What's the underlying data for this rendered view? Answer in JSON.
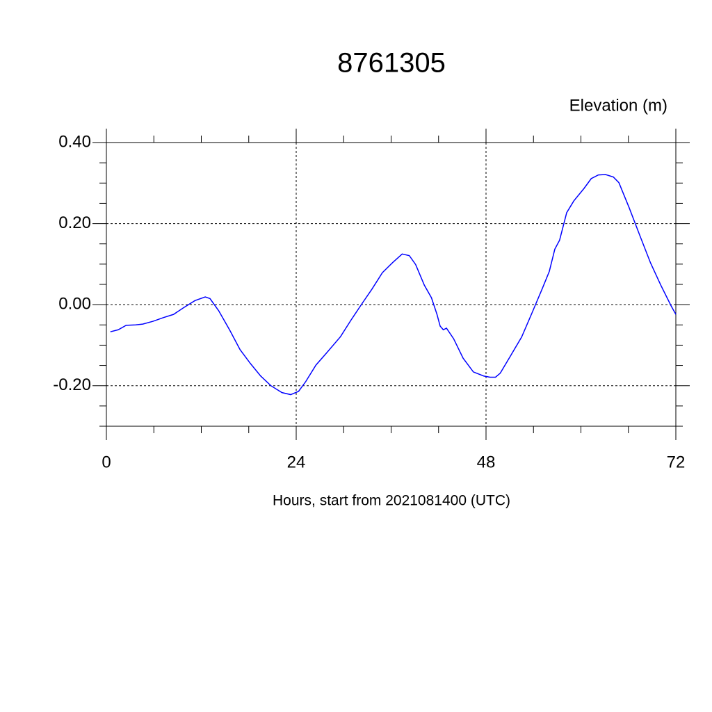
{
  "chart_data": {
    "type": "line",
    "title": "8761305",
    "ylabel": "Elevation (m)",
    "xlabel": "Hours, start from 2021081400 (UTC)",
    "x": [
      0.5,
      1.5,
      2.5,
      3.7,
      4.6,
      5.9,
      7.2,
      8.5,
      9.8,
      11.2,
      12.5,
      13.1,
      14.2,
      15.6,
      16.9,
      18.2,
      19.5,
      20.8,
      22.2,
      23.3,
      24.3,
      25.2,
      26.5,
      27.8,
      29.6,
      30.9,
      32.3,
      33.6,
      34.9,
      36.2,
      37.4,
      38.3,
      39.1,
      40.2,
      41.1,
      41.8,
      42.2,
      42.6,
      43.0,
      43.9,
      45.1,
      46.4,
      47.7,
      48.5,
      49.2,
      49.8,
      51.2,
      52.5,
      53.8,
      55.1,
      56.0,
      56.7,
      57.3,
      58.2,
      59.1,
      60.4,
      61.3,
      62.2,
      63.1,
      64.1,
      64.8,
      66.1,
      67.5,
      68.8,
      70.1,
      71.4,
      72
    ],
    "series": [
      {
        "color": "#0000ff",
        "values": [
          -0.067,
          -0.062,
          -0.051,
          -0.05,
          -0.048,
          -0.041,
          -0.032,
          -0.024,
          -0.007,
          0.01,
          0.019,
          0.015,
          -0.015,
          -0.063,
          -0.111,
          -0.145,
          -0.176,
          -0.2,
          -0.217,
          -0.222,
          -0.214,
          -0.19,
          -0.149,
          -0.12,
          -0.079,
          -0.039,
          0.002,
          0.039,
          0.079,
          0.104,
          0.125,
          0.121,
          0.099,
          0.048,
          0.017,
          -0.024,
          -0.053,
          -0.062,
          -0.058,
          -0.084,
          -0.132,
          -0.166,
          -0.176,
          -0.179,
          -0.179,
          -0.169,
          -0.123,
          -0.08,
          -0.021,
          0.039,
          0.082,
          0.137,
          0.159,
          0.227,
          0.256,
          0.287,
          0.311,
          0.32,
          0.321,
          0.315,
          0.301,
          0.239,
          0.168,
          0.103,
          0.048,
          -0.003,
          -0.024
        ]
      }
    ],
    "xlim": [
      0,
      72
    ],
    "xticks": [
      0,
      24,
      48,
      72
    ],
    "xminorticks": [
      6,
      12,
      18,
      30,
      36,
      42,
      54,
      60,
      66
    ],
    "ylim": [
      -0.3,
      0.4
    ],
    "yticks": [
      {
        "value": 0.4,
        "label": "0.40"
      },
      {
        "value": 0.2,
        "label": "0.20"
      },
      {
        "value": 0,
        "label": "0.00"
      },
      {
        "value": -0.2,
        "label": "-0.20"
      }
    ],
    "yminorticks": [
      0.35,
      0.3,
      0.25,
      0.15,
      0.1,
      0.05,
      -0.05,
      -0.1,
      -0.15,
      -0.25,
      -0.3
    ],
    "grid": true
  }
}
